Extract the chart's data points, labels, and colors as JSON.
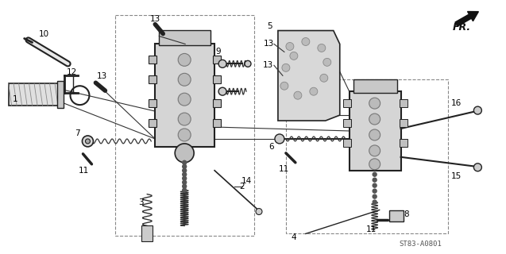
{
  "background_color": "#ffffff",
  "diagram_color": "#111111",
  "label_color": "#000000",
  "watermark": "ST83-A0801",
  "fr_label": "FR.",
  "figsize": [
    6.37,
    3.2
  ],
  "dpi": 100,
  "line_color": "#333333",
  "part_fill": "#cccccc",
  "part_edge": "#222222"
}
